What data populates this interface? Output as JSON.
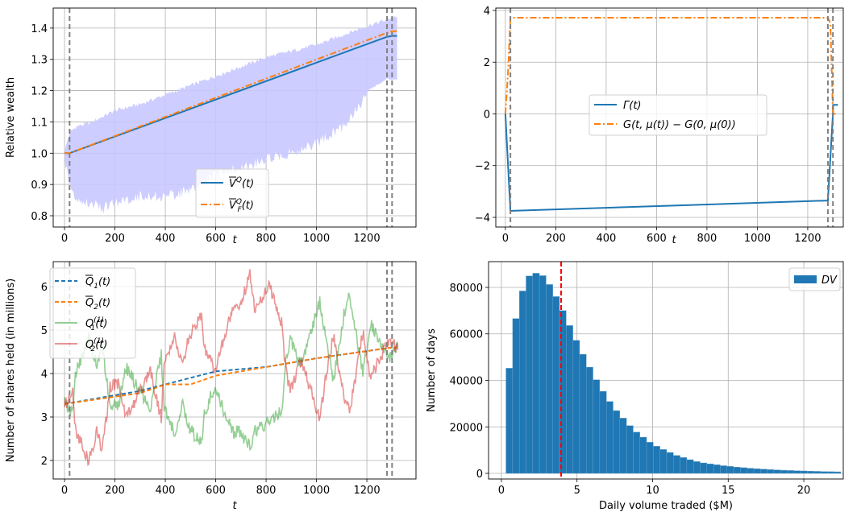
{
  "chart_data": [
    {
      "type": "line",
      "xlabel": "t",
      "ylabel": "Relative wealth",
      "xlim": [
        -45,
        1395
      ],
      "ylim": [
        0.764,
        1.464
      ],
      "xticks": [
        0,
        200,
        400,
        600,
        800,
        1000,
        1200
      ],
      "yticks": [
        0.8,
        0.9,
        1.0,
        1.1,
        1.2,
        1.3,
        1.4
      ],
      "ytick_decimals": 1,
      "grid": true,
      "vlines": [
        20,
        1280,
        1300
      ],
      "band": {
        "color": "#c8c8ff",
        "t": [
          0,
          20,
          50,
          100,
          150,
          200,
          300,
          400,
          500,
          600,
          700,
          800,
          900,
          1000,
          1100,
          1200,
          1280,
          1300,
          1320
        ],
        "upper": [
          1.0,
          1.06,
          1.08,
          1.09,
          1.11,
          1.13,
          1.15,
          1.18,
          1.21,
          1.24,
          1.27,
          1.3,
          1.32,
          1.34,
          1.37,
          1.4,
          1.42,
          1.43,
          1.43
        ],
        "lower": [
          1.0,
          0.92,
          0.87,
          0.86,
          0.84,
          0.86,
          0.88,
          0.88,
          0.9,
          0.95,
          0.97,
          1.0,
          1.02,
          1.05,
          1.1,
          1.2,
          1.24,
          1.24,
          1.24
        ]
      },
      "series": [
        {
          "name": "V_Q",
          "color": "#1f77b4",
          "style": "solid",
          "t": [
            0,
            20,
            1280,
            1300,
            1320
          ],
          "y": [
            1.0,
            1.0,
            1.372,
            1.375,
            1.375
          ]
        },
        {
          "name": "VF_Q",
          "color": "#ff7f0e",
          "style": "dashdot",
          "t": [
            0,
            20,
            1280,
            1300,
            1320
          ],
          "y": [
            1.0,
            1.0,
            1.385,
            1.39,
            1.39
          ]
        }
      ],
      "legend": {
        "placement": "lower-center",
        "entries": [
          {
            "base": "V",
            "sup": "Q",
            "sub": "",
            "arg": "(t)"
          },
          {
            "base": "V",
            "sup": "Q",
            "sub": "F",
            "arg": "(t)"
          }
        ]
      }
    },
    {
      "type": "line",
      "xlabel": "t",
      "ylabel": "",
      "xlim": [
        -38,
        1341
      ],
      "ylim": [
        -4.374,
        4.093
      ],
      "xticks": [
        0,
        200,
        400,
        600,
        800,
        1000,
        1200
      ],
      "yticks": [
        -4,
        -2,
        0,
        2,
        4
      ],
      "ytick_decimals": 0,
      "grid": true,
      "vlines": [
        20,
        1280,
        1300
      ],
      "series": [
        {
          "name": "Gamma",
          "color": "#1f77b4",
          "style": "solid",
          "t": [
            0,
            20,
            1280,
            1300,
            1301,
            1320
          ],
          "y": [
            0,
            -3.75,
            -3.35,
            0.0,
            0.35,
            0.35
          ]
        },
        {
          "name": "G",
          "color": "#ff7f0e",
          "style": "dashdot",
          "t": [
            0,
            10,
            20,
            1280,
            1290,
            1300,
            1320
          ],
          "y": [
            0,
            1.5,
            3.72,
            3.72,
            3.5,
            0,
            0
          ]
        }
      ],
      "legend": {
        "placement": "center",
        "entries": [
          {
            "text": "Γ(t)"
          },
          {
            "text": "G(t, μ(t)) − G(0, μ(0))"
          }
        ]
      }
    },
    {
      "type": "line",
      "xlabel": "t",
      "ylabel": "Number of shares held (in millions)",
      "xlim": [
        -45,
        1395
      ],
      "ylim": [
        1.574,
        6.574
      ],
      "xticks": [
        0,
        200,
        400,
        600,
        800,
        1000,
        1200
      ],
      "yticks": [
        2,
        3,
        4,
        5,
        6
      ],
      "ytick_decimals": 0,
      "grid": true,
      "vlines": [
        20,
        1280,
        1300
      ],
      "series": [
        {
          "name": "Q1_bar",
          "color": "#1f77b4",
          "style": "dashed",
          "t": [
            0,
            300,
            500,
            600,
            800,
            1000,
            1300,
            1320
          ],
          "y": [
            3.3,
            3.6,
            3.9,
            4.05,
            4.15,
            4.35,
            4.6,
            4.6
          ]
        },
        {
          "name": "Q2_bar",
          "color": "#ff7f0e",
          "style": "dashed",
          "t": [
            0,
            300,
            400,
            500,
            600,
            800,
            1000,
            1300,
            1320
          ],
          "y": [
            3.3,
            3.55,
            3.75,
            3.75,
            3.95,
            4.15,
            4.35,
            4.6,
            4.6
          ]
        },
        {
          "name": "Q1_1",
          "color": "#2ca02c",
          "style": "noisy",
          "t": [
            0,
            32,
            43,
            96,
            128,
            149,
            181,
            213,
            245,
            277,
            341,
            384,
            395,
            437,
            469,
            491,
            544,
            555,
            597,
            619,
            672,
            693,
            736,
            757,
            811,
            832,
            864,
            875,
            896,
            939,
            1013,
            1035,
            1067,
            1109,
            1131,
            1184,
            1216,
            1237,
            1291,
            1323
          ],
          "y": [
            3.33,
            3.08,
            3.97,
            4.81,
            4.21,
            4.68,
            3.26,
            3.26,
            4.13,
            3.82,
            3.21,
            4.41,
            3.19,
            2.66,
            3.34,
            2.77,
            2.38,
            3.08,
            3.72,
            3.33,
            2.6,
            2.7,
            2.3,
            2.68,
            2.9,
            3.0,
            3.21,
            4.15,
            4.81,
            4.16,
            5.67,
            4.84,
            3.85,
            5.36,
            5.77,
            4.03,
            5.14,
            4.87,
            4.37,
            4.62
          ]
        },
        {
          "name": "Q2_1",
          "color": "#d62728",
          "style": "noisy",
          "t": [
            0,
            32,
            43,
            96,
            128,
            149,
            181,
            213,
            245,
            277,
            341,
            384,
            395,
            437,
            469,
            491,
            544,
            555,
            597,
            619,
            672,
            693,
            736,
            757,
            811,
            832,
            864,
            875,
            896,
            939,
            1013,
            1035,
            1067,
            1109,
            1131,
            1184,
            1216,
            1237,
            1291,
            1323
          ],
          "y": [
            3.27,
            3.58,
            2.72,
            1.98,
            2.65,
            2.22,
            3.7,
            3.77,
            2.96,
            3.33,
            4.07,
            2.96,
            4.2,
            4.81,
            4.2,
            4.81,
            5.31,
            4.63,
            4.07,
            4.51,
            5.56,
            5.43,
            6.3,
            5.43,
            6.05,
            5.68,
            5.12,
            4.2,
            3.58,
            4.32,
            2.96,
            3.83,
            4.88,
            3.46,
            3.09,
            4.94,
            3.89,
            4.2,
            4.81,
            4.54
          ]
        }
      ],
      "legend": {
        "placement": "upper-left",
        "entries": [
          {
            "base": "Q",
            "sub": "1",
            "sup": "",
            "arg": "(t)",
            "bar": true
          },
          {
            "base": "Q",
            "sub": "2",
            "sup": "",
            "arg": "(t)",
            "bar": true
          },
          {
            "base": "Q",
            "sub": "1",
            "sup": "(1)",
            "arg": "(t)",
            "bar": false
          },
          {
            "base": "Q",
            "sub": "2",
            "sup": "(1)",
            "arg": "(t)",
            "bar": false
          }
        ]
      }
    },
    {
      "type": "bar",
      "xlabel": "Daily volume traded ($M)",
      "ylabel": "Number of days",
      "xlim": [
        -0.85,
        22.61
      ],
      "ylim": [
        -2424,
        91082
      ],
      "xticks": [
        0,
        5,
        10,
        15,
        20
      ],
      "yticks": [
        0,
        20000,
        40000,
        60000,
        80000
      ],
      "ytick_decimals": 0,
      "grid": true,
      "bin_start": 0.3,
      "bin_width": 0.443,
      "values": [
        45240,
        66590,
        78470,
        84930,
        86090,
        85050,
        81240,
        76050,
        70050,
        63590,
        57240,
        51240,
        45700,
        40270,
        35310,
        30920,
        27000,
        23770,
        20540,
        17770,
        15580,
        13390,
        11660,
        10270,
        9000,
        7730,
        6810,
        5890,
        5080,
        4500,
        4100,
        3700,
        3300,
        3000,
        2700,
        2450,
        2200,
        2000,
        1800,
        1650,
        1500,
        1350,
        1250,
        1150,
        1050,
        950,
        880,
        800,
        740,
        680
      ],
      "bar_color": "#1f77b4",
      "mean_line": {
        "x": 3.95,
        "color": "#ff0000"
      },
      "legend": {
        "placement": "upper-right",
        "entries": [
          {
            "text": "DV"
          }
        ]
      }
    }
  ]
}
